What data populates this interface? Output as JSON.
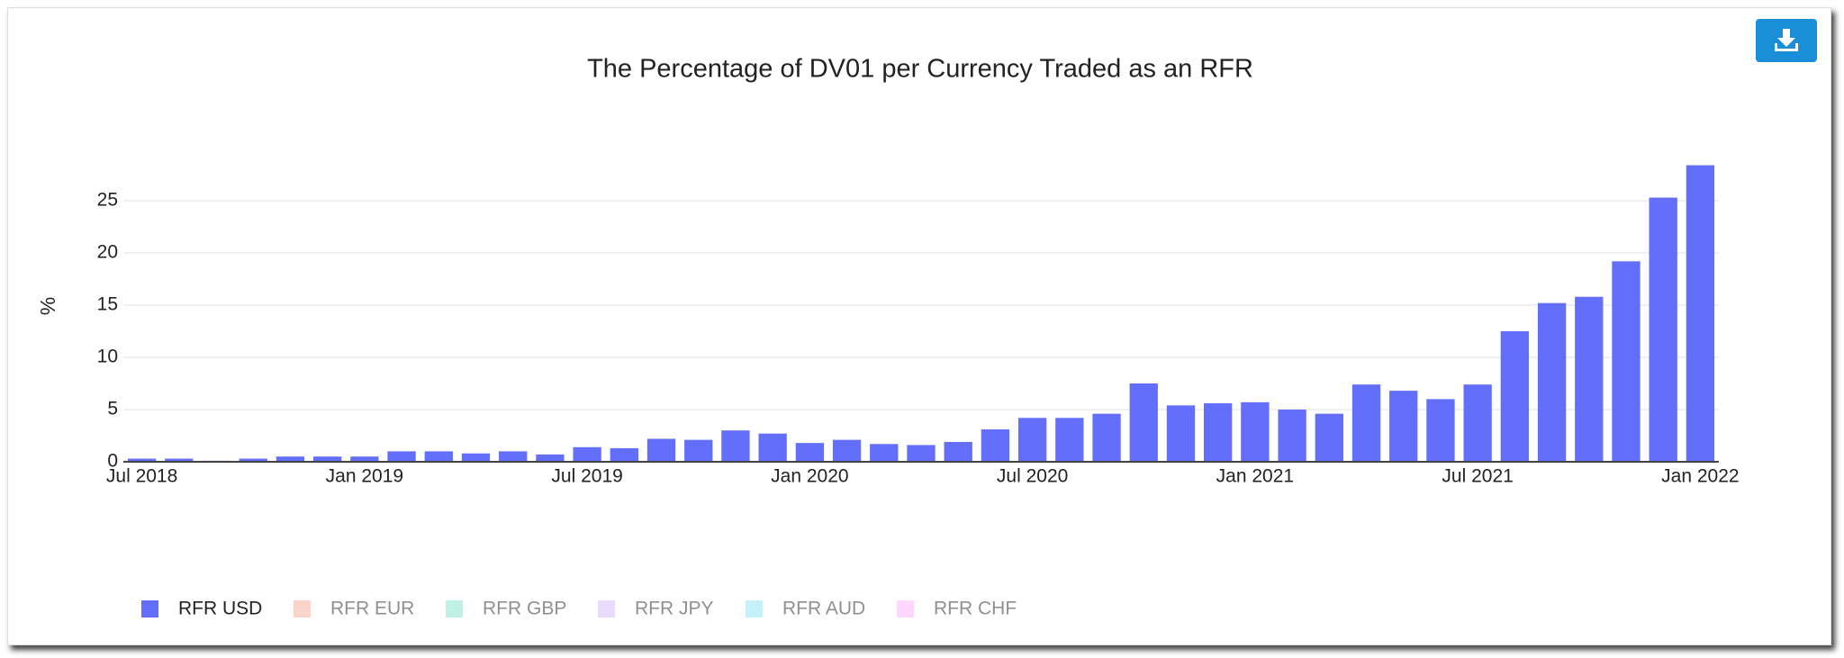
{
  "chart_data": {
    "type": "bar",
    "title": "The Percentage of DV01 per Currency Traded as an RFR",
    "y_label": "%",
    "x": [
      "2018-07",
      "2018-08",
      "2018-09",
      "2018-10",
      "2018-11",
      "2018-12",
      "2019-01",
      "2019-02",
      "2019-03",
      "2019-04",
      "2019-05",
      "2019-06",
      "2019-07",
      "2019-08",
      "2019-09",
      "2019-10",
      "2019-11",
      "2019-12",
      "2020-01",
      "2020-02",
      "2020-03",
      "2020-04",
      "2020-05",
      "2020-06",
      "2020-07",
      "2020-08",
      "2020-09",
      "2020-10",
      "2020-11",
      "2020-12",
      "2021-01",
      "2021-02",
      "2021-03",
      "2021-04",
      "2021-05",
      "2021-06",
      "2021-07",
      "2021-08",
      "2021-09",
      "2021-10",
      "2021-11",
      "2021-12",
      "2022-01"
    ],
    "series": [
      {
        "name": "RFR USD",
        "color": "#636efa",
        "visible": true,
        "values": [
          0.3,
          0.3,
          0.1,
          0.3,
          0.5,
          0.5,
          0.5,
          1.0,
          1.0,
          0.8,
          1.0,
          0.7,
          1.4,
          1.3,
          2.2,
          2.1,
          3.0,
          2.7,
          1.8,
          2.1,
          1.7,
          1.6,
          1.9,
          3.1,
          4.2,
          4.2,
          4.6,
          7.5,
          5.4,
          5.6,
          5.7,
          5.0,
          4.6,
          7.4,
          6.8,
          6.0,
          7.4,
          12.5,
          15.2,
          15.8,
          19.2,
          25.3,
          28.4
        ]
      },
      {
        "name": "RFR EUR",
        "color": "#f7a999",
        "visible": false
      },
      {
        "name": "RFR GBP",
        "color": "#80e3c9",
        "visible": false
      },
      {
        "name": "RFR JPY",
        "color": "#d4b8fb",
        "visible": false
      },
      {
        "name": "RFR AUD",
        "color": "#8ce6f7",
        "visible": false
      },
      {
        "name": "RFR CHF",
        "color": "#fbb0fb",
        "visible": false
      }
    ],
    "ylim": [
      0,
      30
    ],
    "yticks": [
      0,
      5,
      10,
      15,
      20,
      25
    ],
    "xticks": [
      {
        "value": "2018-07",
        "label": "Jul 2018"
      },
      {
        "value": "2019-01",
        "label": "Jan 2019"
      },
      {
        "value": "2019-07",
        "label": "Jul 2019"
      },
      {
        "value": "2020-01",
        "label": "Jan 2020"
      },
      {
        "value": "2020-07",
        "label": "Jul 2020"
      },
      {
        "value": "2021-01",
        "label": "Jan 2021"
      },
      {
        "value": "2021-07",
        "label": "Jul 2021"
      },
      {
        "value": "2022-01",
        "label": "Jan 2022"
      }
    ],
    "grid": true
  }
}
